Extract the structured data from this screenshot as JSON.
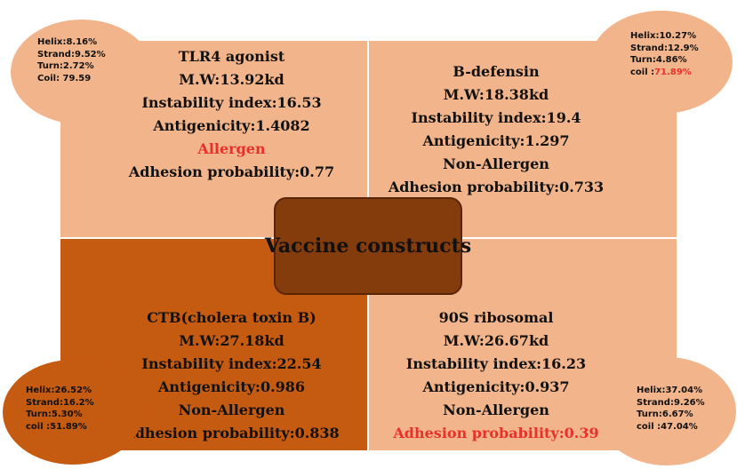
{
  "colors": {
    "light_peach": "#f2b48a",
    "dark_orange": "#c55a11",
    "center_brown": "#843c0c",
    "highlight_red": "#e8312a"
  },
  "center": {
    "label": "Vaccine constructs"
  },
  "constructs": [
    {
      "id": "tlr4",
      "lines": [
        "TLR4 agonist",
        "M.W:13.92kd",
        "Instability index:16.53",
        "Antigenicity:1.4082",
        "Allergen",
        "Adhesion probability:0.77"
      ],
      "stats": [
        "Helix:8.16%",
        "Strand:9.52%",
        "Turn:2.72%",
        "Coil: 79.59"
      ]
    },
    {
      "id": "b-defensin",
      "lines": [
        "B-defensin",
        "M.W:18.38kd",
        "Instability index:19.4",
        "Antigenicity:1.297",
        "Non-Allergen",
        "Adhesion probability:0.733"
      ],
      "stats": [
        "Helix:10.27%",
        "Strand:12.9%",
        "Turn:4.86%"
      ],
      "coil_label": "coil :",
      "coil_value": "71.89%"
    },
    {
      "id": "ctb",
      "lines": [
        "CTB(cholera toxin B)",
        "M.W:27.18kd",
        "Instability index:22.54",
        "Antigenicity:0.986",
        "Non-Allergen",
        "Adhesion probability:0.838"
      ],
      "stats": [
        "Helix:26.52%",
        "Strand:16.2%",
        "Turn:5.30%",
        "coil :51.89%"
      ]
    },
    {
      "id": "90s",
      "lines": [
        "90S ribosomal",
        "M.W:26.67kd",
        "Instability index:16.23",
        "Antigenicity:0.937",
        "Non-Allergen",
        "Adhesion probability:0.39"
      ],
      "stats": [
        "Helix:37.04%",
        "Strand:9.26%",
        "Turn:6.67%",
        "coil :47.04%"
      ]
    }
  ]
}
